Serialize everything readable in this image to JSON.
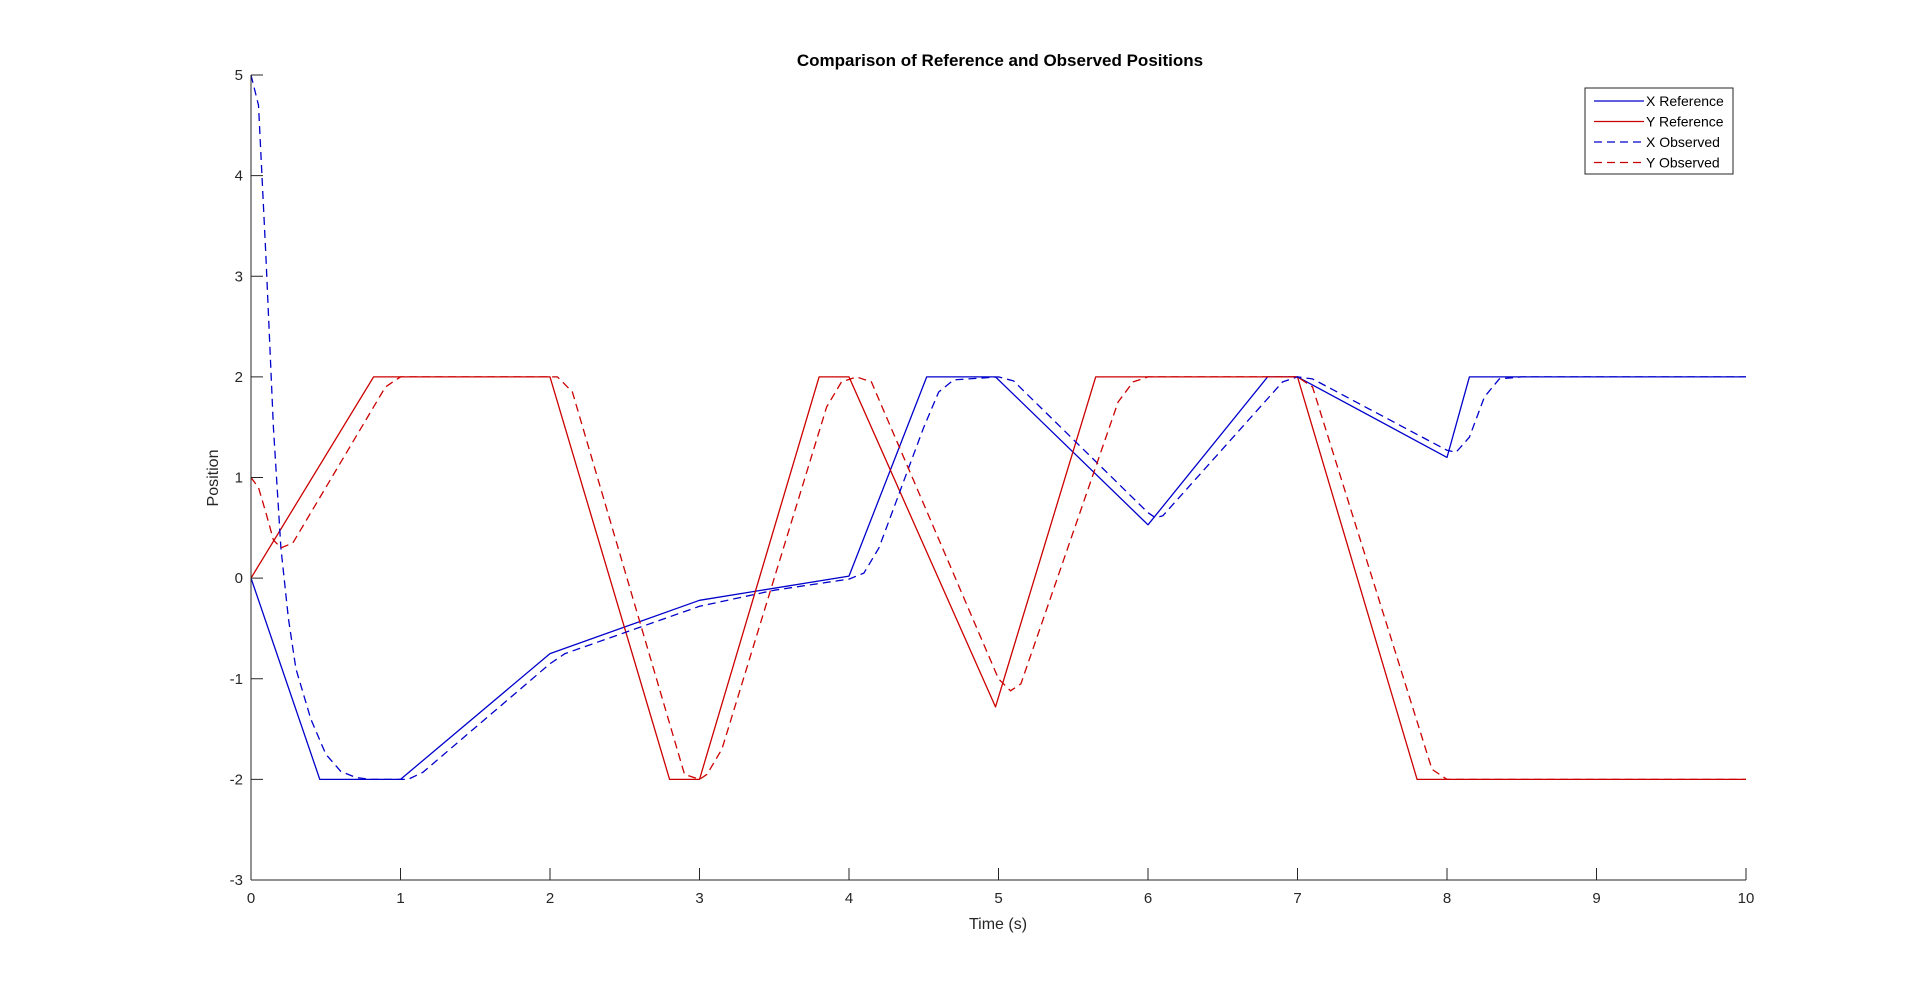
{
  "chart_data": {
    "type": "line",
    "title": "Comparison of Reference and Observed Positions",
    "xlabel": "Time (s)",
    "ylabel": "Position",
    "xlim": [
      0,
      10
    ],
    "ylim": [
      -3,
      5
    ],
    "xticks": [
      0,
      1,
      2,
      3,
      4,
      5,
      6,
      7,
      8,
      9,
      10
    ],
    "yticks": [
      -3,
      -2,
      -1,
      0,
      1,
      2,
      3,
      4,
      5
    ],
    "grid": false,
    "legend_position": "top-right",
    "series": [
      {
        "name": "X Reference",
        "color": "#0000cc",
        "dash": "solid",
        "points": [
          [
            0,
            0
          ],
          [
            0.46,
            -2
          ],
          [
            1,
            -2
          ],
          [
            2,
            -0.75
          ],
          [
            3,
            -0.22
          ],
          [
            4,
            0.02
          ],
          [
            4.52,
            2
          ],
          [
            4.98,
            2
          ],
          [
            6,
            0.53
          ],
          [
            6.8,
            2
          ],
          [
            7,
            2
          ],
          [
            8,
            1.2
          ],
          [
            8.15,
            2
          ],
          [
            10,
            2
          ]
        ]
      },
      {
        "name": "Y Reference",
        "color": "#cc0000",
        "dash": "solid",
        "points": [
          [
            0,
            0
          ],
          [
            0.82,
            2
          ],
          [
            2,
            2
          ],
          [
            2.8,
            -2
          ],
          [
            3,
            -2
          ],
          [
            3.8,
            2
          ],
          [
            4,
            2
          ],
          [
            4.98,
            -1.28
          ],
          [
            5.65,
            2
          ],
          [
            7,
            2
          ],
          [
            7.8,
            -2
          ],
          [
            10,
            -2
          ]
        ]
      },
      {
        "name": "X Observed",
        "color": "#0000cc",
        "dash": "dashed",
        "points": [
          [
            0,
            5
          ],
          [
            0.05,
            4.7
          ],
          [
            0.1,
            3.2
          ],
          [
            0.15,
            1.5
          ],
          [
            0.2,
            0.3
          ],
          [
            0.25,
            -0.4
          ],
          [
            0.3,
            -0.9
          ],
          [
            0.4,
            -1.4
          ],
          [
            0.5,
            -1.75
          ],
          [
            0.6,
            -1.92
          ],
          [
            0.7,
            -1.98
          ],
          [
            0.8,
            -2
          ],
          [
            1.05,
            -2
          ],
          [
            1.15,
            -1.93
          ],
          [
            2,
            -0.85
          ],
          [
            2.1,
            -0.75
          ],
          [
            3,
            -0.28
          ],
          [
            3.5,
            -0.12
          ],
          [
            4,
            -0.01
          ],
          [
            4.1,
            0.05
          ],
          [
            4.2,
            0.3
          ],
          [
            4.3,
            0.7
          ],
          [
            4.4,
            1.1
          ],
          [
            4.5,
            1.5
          ],
          [
            4.6,
            1.85
          ],
          [
            4.7,
            1.97
          ],
          [
            5,
            2
          ],
          [
            5.1,
            1.96
          ],
          [
            6,
            0.65
          ],
          [
            6.05,
            0.6
          ],
          [
            6.1,
            0.62
          ],
          [
            6.9,
            1.95
          ],
          [
            7,
            2
          ],
          [
            7.1,
            1.98
          ],
          [
            8,
            1.27
          ],
          [
            8.06,
            1.25
          ],
          [
            8.15,
            1.4
          ],
          [
            8.25,
            1.8
          ],
          [
            8.35,
            1.98
          ],
          [
            8.5,
            2
          ],
          [
            10,
            2
          ]
        ]
      },
      {
        "name": "Y Observed",
        "color": "#cc0000",
        "dash": "dashed",
        "points": [
          [
            0,
            1
          ],
          [
            0.05,
            0.9
          ],
          [
            0.1,
            0.65
          ],
          [
            0.15,
            0.38
          ],
          [
            0.2,
            0.3
          ],
          [
            0.28,
            0.35
          ],
          [
            0.9,
            1.9
          ],
          [
            1,
            2
          ],
          [
            2.05,
            2
          ],
          [
            2.15,
            1.85
          ],
          [
            2.9,
            -1.95
          ],
          [
            3,
            -2
          ],
          [
            3.05,
            -1.95
          ],
          [
            3.15,
            -1.7
          ],
          [
            3.85,
            1.7
          ],
          [
            3.95,
            1.95
          ],
          [
            4.05,
            2
          ],
          [
            4.15,
            1.95
          ],
          [
            5,
            -1
          ],
          [
            5.08,
            -1.12
          ],
          [
            5.15,
            -1.05
          ],
          [
            5.8,
            1.75
          ],
          [
            5.9,
            1.95
          ],
          [
            6,
            2
          ],
          [
            7,
            2
          ],
          [
            7.1,
            1.9
          ],
          [
            7.9,
            -1.9
          ],
          [
            8,
            -2
          ],
          [
            10,
            -2
          ]
        ]
      }
    ]
  }
}
